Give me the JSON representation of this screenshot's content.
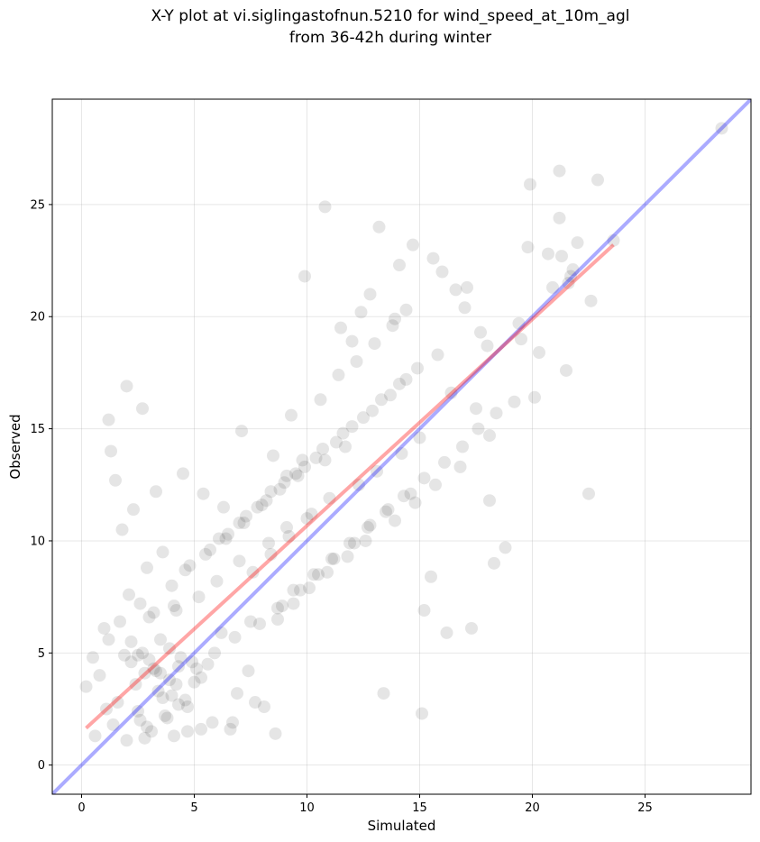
{
  "chart_data": {
    "type": "scatter",
    "title_line1": "X-Y plot at vi.siglingastofnun.5210 for wind_speed_at_10m_agl",
    "title_line2": "from 36-42h during winter",
    "xlabel": "Simulated",
    "ylabel": "Observed",
    "xlim": [
      -1.3,
      29.7
    ],
    "ylim": [
      -1.3,
      29.7
    ],
    "xticks": [
      0,
      5,
      10,
      15,
      20,
      25
    ],
    "yticks": [
      0,
      5,
      10,
      15,
      20,
      25
    ],
    "grid": true,
    "point_color": "#000000",
    "point_alpha": 0.1,
    "one_to_one_line": {
      "color": "#0000ff",
      "alpha": 0.33,
      "x": [
        -1.3,
        29.7
      ],
      "y": [
        -1.3,
        29.7
      ]
    },
    "fit_line": {
      "color": "#ff0000",
      "alpha": 0.35,
      "x": [
        0.2,
        23.6
      ],
      "y": [
        1.65,
        23.2
      ]
    },
    "series": [
      {
        "x": [
          28.4,
          19.9,
          21.2,
          22.9,
          20.7,
          22.0,
          21.7,
          21.3,
          21.2,
          21.8,
          22.6,
          23.6,
          21.6,
          20.9,
          19.8,
          22.5,
          10.8,
          9.9,
          13.2,
          16.0,
          17.1,
          14.7,
          15.6,
          14.1,
          14.4,
          12.8,
          13.9,
          11.5,
          12.4,
          12.0,
          1.2,
          1.3,
          2.0,
          2.7,
          1.5,
          16.2,
          17.3,
          15.2,
          18.3,
          18.8,
          19.2,
          15.5,
          17.7,
          17.0,
          16.6,
          18.0,
          19.4,
          20.1,
          20.3,
          19.5,
          21.5,
          18.1,
          13.4,
          15.1,
          0.2,
          0.8,
          1.1,
          1.6,
          2.4,
          2.6,
          3.2,
          3.7,
          4.0,
          4.3,
          4.9,
          5.3,
          2.9,
          3.4,
          4.6,
          1.0,
          1.9,
          2.2,
          2.8,
          3.9,
          4.4,
          5.0,
          5.6,
          6.2,
          6.9,
          7.4,
          8.1,
          3.0,
          3.5,
          4.1,
          0.6,
          1.4,
          2.5,
          3.1,
          3.8,
          4.7,
          5.8,
          6.6,
          7.7,
          8.6,
          2.1,
          2.9,
          3.6,
          4.2,
          5.2,
          6.0,
          7.0,
          8.3,
          9.1,
          10.2,
          11.0,
          12.3,
          13.1,
          14.2,
          15.0,
          9.6,
          10.8,
          11.7,
          6.4,
          7.2,
          8.0,
          8.8,
          9.5,
          10.4,
          11.3,
          12.0,
          12.9,
          13.7,
          7.6,
          8.4,
          9.2,
          10.0,
          4.8,
          5.7,
          6.5,
          7.3,
          8.2,
          9.0,
          9.9,
          10.7,
          11.6,
          12.5,
          13.3,
          14.1,
          14.9,
          15.8,
          7.9,
          8.7,
          9.4,
          10.3,
          11.1,
          11.9,
          12.7,
          13.5,
          14.3,
          15.2,
          16.1,
          16.9,
          17.6,
          18.4,
          1.8,
          2.3,
          3.3,
          4.5,
          5.4,
          6.3,
          7.1,
          8.5,
          9.3,
          10.6,
          11.4,
          12.2,
          13.0,
          13.8,
          3.6,
          4.2,
          5.1,
          5.9,
          6.8,
          7.5,
          8.9,
          9.7,
          10.5,
          11.2,
          12.1,
          12.8,
          13.6,
          14.6,
          0.5,
          1.2,
          1.7,
          2.6,
          3.2,
          4.0,
          4.6,
          5.5,
          6.1,
          7.0,
          7.8,
          8.4,
          9.1,
          9.8,
          14.4,
          16.4,
          17.5,
          18.1,
          16.8,
          15.7,
          14.8,
          13.9,
          12.6,
          11.8,
          10.9,
          10.1,
          9.4,
          8.7,
          2.2,
          2.5,
          2.7,
          3.0,
          3.3,
          3.9,
          4.3,
          3.5,
          2.0,
          2.8,
          4.1,
          4.7,
          5.3,
          6.7
        ],
        "y": [
          28.4,
          25.9,
          26.5,
          26.1,
          22.8,
          23.3,
          21.8,
          22.7,
          24.4,
          22.1,
          20.7,
          23.4,
          21.5,
          21.3,
          23.1,
          12.1,
          24.9,
          21.8,
          24.0,
          22.0,
          21.3,
          23.2,
          22.6,
          22.3,
          20.3,
          21.0,
          19.9,
          19.5,
          20.2,
          18.9,
          15.4,
          14.0,
          16.9,
          15.9,
          12.7,
          5.9,
          6.1,
          6.9,
          9.0,
          9.7,
          16.2,
          8.4,
          19.3,
          20.4,
          21.2,
          18.7,
          19.7,
          16.4,
          18.4,
          19.0,
          17.6,
          11.8,
          3.2,
          2.3,
          3.5,
          4.0,
          2.5,
          2.8,
          3.6,
          2.0,
          4.3,
          2.2,
          3.1,
          2.7,
          4.6,
          3.9,
          1.7,
          3.3,
          2.9,
          6.1,
          4.9,
          5.5,
          4.1,
          5.2,
          4.8,
          3.7,
          4.5,
          5.9,
          3.2,
          4.2,
          2.6,
          6.6,
          5.6,
          7.1,
          1.3,
          1.8,
          2.4,
          1.5,
          2.1,
          2.6,
          1.9,
          1.6,
          2.8,
          1.4,
          7.6,
          8.8,
          9.5,
          6.9,
          7.5,
          8.2,
          9.1,
          9.9,
          10.6,
          11.2,
          11.9,
          12.5,
          13.1,
          13.9,
          14.6,
          12.9,
          13.6,
          14.2,
          10.1,
          10.8,
          11.6,
          12.3,
          13.0,
          13.7,
          14.4,
          15.1,
          15.8,
          16.5,
          8.6,
          9.4,
          10.2,
          11.0,
          8.9,
          9.6,
          10.3,
          11.1,
          11.8,
          12.6,
          13.3,
          14.1,
          14.8,
          15.5,
          16.3,
          17.0,
          17.7,
          18.3,
          6.3,
          7.0,
          7.8,
          8.5,
          9.2,
          9.9,
          10.6,
          11.3,
          12.0,
          12.8,
          13.5,
          14.2,
          15.0,
          15.7,
          10.5,
          11.4,
          12.2,
          13.0,
          12.1,
          11.5,
          14.9,
          13.8,
          15.6,
          16.3,
          17.4,
          18.0,
          18.8,
          19.6,
          3.0,
          3.6,
          4.3,
          5.0,
          5.7,
          6.4,
          7.1,
          7.8,
          8.5,
          9.2,
          9.9,
          10.7,
          11.4,
          12.1,
          4.8,
          5.6,
          6.4,
          7.2,
          6.8,
          8.0,
          8.7,
          9.4,
          10.1,
          10.8,
          11.5,
          12.2,
          12.9,
          13.6,
          17.2,
          16.6,
          15.9,
          14.7,
          13.3,
          12.5,
          11.7,
          10.9,
          10.0,
          9.3,
          8.6,
          7.9,
          7.2,
          6.5,
          4.6,
          4.9,
          5.0,
          4.7,
          4.2,
          3.8,
          4.4,
          4.1,
          1.1,
          1.2,
          1.3,
          1.5,
          1.6,
          1.9
        ]
      }
    ]
  }
}
